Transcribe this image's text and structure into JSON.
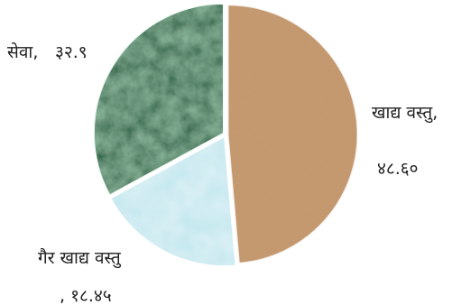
{
  "chart_data": {
    "type": "pie",
    "start_angle_deg": 0,
    "direction": "clockwise",
    "slices": [
      {
        "label": "खाद्य वस्तु,",
        "value_text": "४८.६०",
        "value": 48.6,
        "color": "#c4956a"
      },
      {
        "label": "गैर खाद्य वस्तु",
        "value_text": ", १८.४५",
        "value": 18.45,
        "color": "#bfe6ee"
      },
      {
        "label": "सेवा,",
        "value_text": "३२.९",
        "value": 32.9,
        "color": "#1f5c3e"
      }
    ]
  }
}
